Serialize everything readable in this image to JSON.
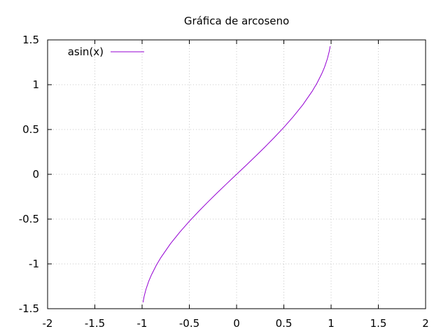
{
  "chart_data": {
    "type": "line",
    "title": "Gráfica de arcoseno",
    "xlabel": "",
    "ylabel": "",
    "xlim": [
      -2,
      2
    ],
    "ylim": [
      -1.5,
      1.5
    ],
    "x_ticks": [
      -2,
      -1.5,
      -1,
      -0.5,
      0,
      0.5,
      1,
      1.5,
      2
    ],
    "y_ticks": [
      -1.5,
      -1,
      -0.5,
      0,
      0.5,
      1,
      1.5
    ],
    "x_tick_labels": [
      "-2",
      "-1.5",
      "-1",
      "-0.5",
      "0",
      "0.5",
      "1",
      "1.5",
      "2"
    ],
    "y_tick_labels": [
      "-1.5",
      "-1",
      "-0.5",
      "0",
      "0.5",
      "1",
      "1.5"
    ],
    "grid": true,
    "legend_position": "top-left",
    "series": [
      {
        "name": "asin(x)",
        "color": "#9400d3",
        "x": [
          -0.99,
          -0.98,
          -0.96,
          -0.93,
          -0.9,
          -0.85,
          -0.8,
          -0.7,
          -0.6,
          -0.5,
          -0.4,
          -0.3,
          -0.2,
          -0.1,
          0,
          0.1,
          0.2,
          0.3,
          0.4,
          0.5,
          0.6,
          0.7,
          0.8,
          0.85,
          0.9,
          0.93,
          0.96,
          0.98,
          0.99
        ],
        "y": [
          -1.429,
          -1.37,
          -1.287,
          -1.194,
          -1.12,
          -1.016,
          -0.927,
          -0.775,
          -0.644,
          -0.524,
          -0.412,
          -0.305,
          -0.201,
          -0.1,
          0,
          0.1,
          0.201,
          0.305,
          0.412,
          0.524,
          0.644,
          0.775,
          0.927,
          1.016,
          1.12,
          1.194,
          1.287,
          1.37,
          1.429
        ]
      }
    ]
  }
}
